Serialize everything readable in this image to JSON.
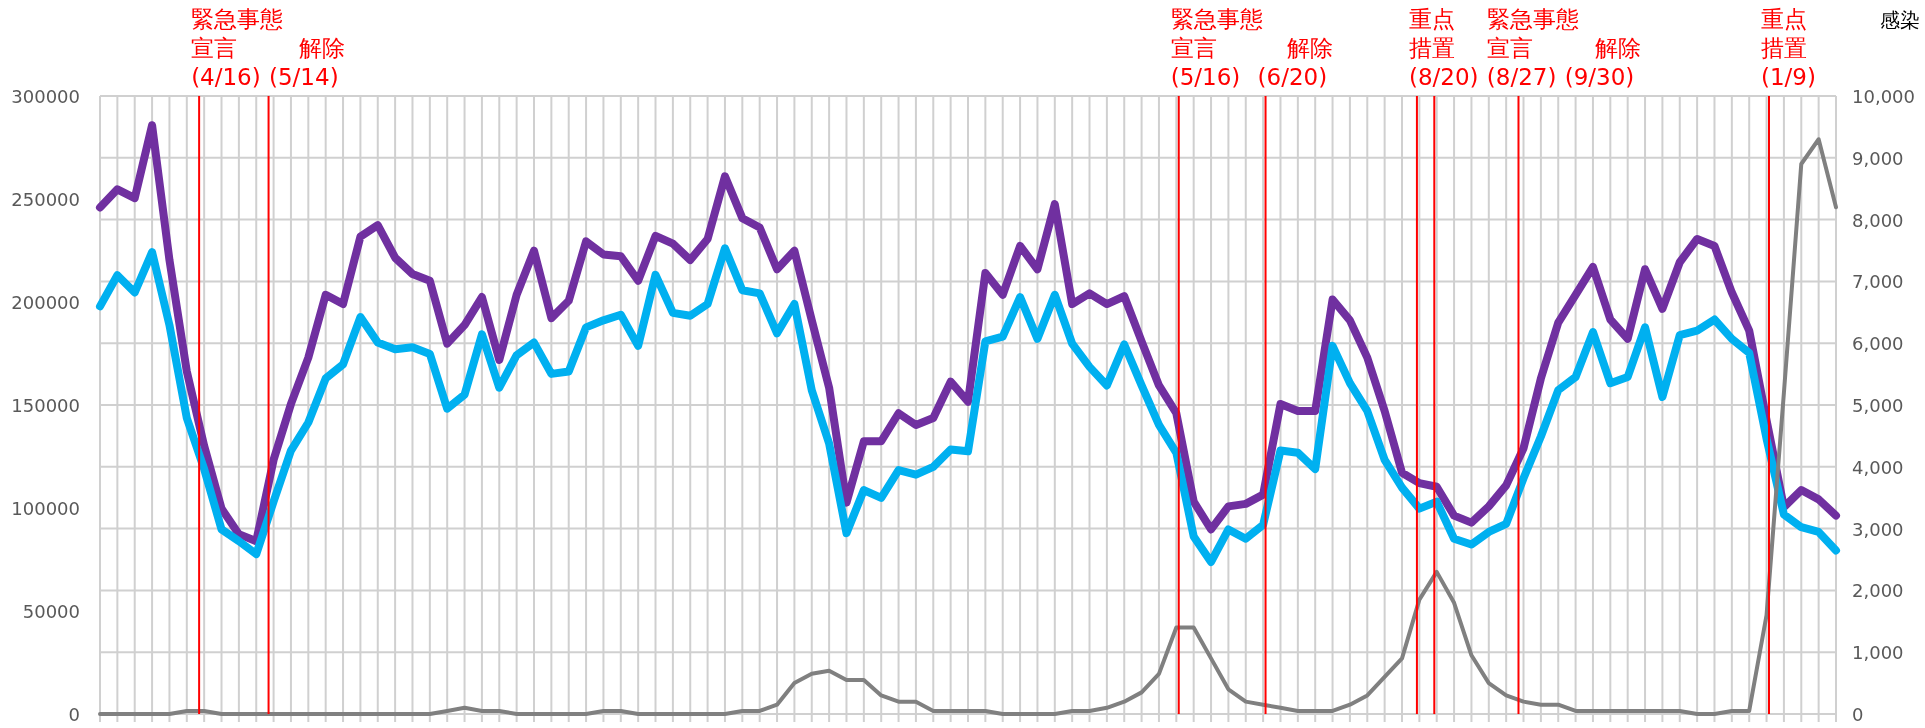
{
  "chart_data": {
    "type": "line",
    "y2label": "感染",
    "categories": [
      null,
      null,
      null,
      null,
      null,
      null,
      null,
      null,
      null,
      null,
      null,
      null,
      null,
      null,
      null,
      null,
      null,
      null,
      null,
      null,
      null,
      null,
      null,
      null,
      null,
      null,
      null,
      null,
      null,
      null,
      null,
      null,
      null,
      null,
      null,
      null,
      null,
      null,
      null,
      null,
      null,
      null,
      null,
      null,
      null,
      null,
      null,
      null,
      null,
      null,
      null,
      null,
      null,
      null,
      null,
      null,
      null,
      null,
      null,
      null,
      null,
      null,
      null,
      null,
      null,
      null,
      null,
      null,
      null,
      null,
      null,
      null,
      null,
      null,
      null,
      null,
      null,
      null,
      null,
      null,
      null,
      null,
      null,
      null,
      null,
      null,
      null,
      null,
      null,
      null,
      null,
      null,
      null,
      null,
      null,
      null,
      null,
      null,
      null,
      null,
      null
    ],
    "ylim": [
      0,
      300000
    ],
    "yticks": [
      0,
      50000,
      100000,
      150000,
      200000,
      250000,
      300000
    ],
    "y2lim": [
      0,
      10000
    ],
    "y2ticks": [
      0,
      {
        "value": 1000,
        "label": "1,000"
      },
      {
        "value": 2000,
        "label": "2,000"
      },
      {
        "value": 3000,
        "label": "3,000"
      },
      {
        "value": 4000,
        "label": "4,000"
      },
      {
        "value": 5000,
        "label": "5,000"
      },
      {
        "value": 6000,
        "label": "6,000"
      },
      {
        "value": 7000,
        "label": "7,000"
      },
      {
        "value": 8000,
        "label": "8,000"
      },
      {
        "value": 9000,
        "label": "9,000"
      },
      {
        "value": 10000,
        "label": "10,000"
      }
    ],
    "grid": true,
    "tick_labels": "y",
    "series": [
      {
        "color": "#7030a0",
        "values": [
          245900,
          254700,
          250400,
          285800,
          220400,
          166300,
          130200,
          99700,
          87300,
          83900,
          123400,
          150500,
          173000,
          203500,
          199000,
          231700,
          237300,
          221500,
          213600,
          210300,
          179800,
          188800,
          202400,
          171900,
          203500,
          224900,
          192200,
          200600,
          229400,
          223100,
          222200,
          210300,
          232100,
          228300,
          220400,
          230600,
          261000,
          240700,
          236200,
          215900,
          224900,
          191100,
          158400,
          102600,
          132400,
          132400,
          146000,
          140300,
          143700,
          161300,
          151600,
          214100,
          203500,
          227200,
          215900,
          247500,
          199000,
          204200,
          199000,
          202800,
          180900,
          159500,
          146000,
          103100,
          89600,
          100800,
          102000,
          106500,
          150500,
          147100,
          147100,
          201200,
          191100,
          173000,
          147100,
          117100,
          112100,
          110300,
          96300,
          92900,
          100800,
          111000,
          129000,
          162900,
          190000,
          203500,
          217000,
          191500,
          182100,
          215900,
          196700,
          219300,
          230600,
          227200,
          204600,
          186100,
          142600,
          100400,
          108700,
          104200,
          96300
        ]
      },
      {
        "color": "#00b0f0",
        "values": [
          197900,
          213000,
          204600,
          224200,
          188800,
          143700,
          118900,
          89600,
          83900,
          77600,
          103100,
          127900,
          141500,
          162900,
          169700,
          192700,
          180300,
          177100,
          178000,
          174800,
          148200,
          155000,
          184300,
          158400,
          174200,
          180300,
          165100,
          166300,
          187700,
          191100,
          193800,
          178700,
          213200,
          194700,
          193300,
          199000,
          226100,
          205700,
          204200,
          184800,
          199000,
          157200,
          131300,
          87800,
          108700,
          104900,
          118400,
          116200,
          120000,
          128400,
          127500,
          180900,
          183200,
          202400,
          182100,
          203500,
          179800,
          168500,
          159500,
          179400,
          159500,
          140300,
          126800,
          86200,
          73800,
          89600,
          85100,
          91800,
          127900,
          126800,
          118900,
          178700,
          160600,
          147100,
          123400,
          109900,
          99700,
          103100,
          85100,
          82300,
          88400,
          92300,
          114400,
          134700,
          157200,
          163600,
          185400,
          160600,
          163600,
          187700,
          153900,
          183900,
          186100,
          191500,
          182100,
          175300,
          133600,
          96800,
          90700,
          88400,
          79400
        ]
      },
      {
        "color": "#808080",
        "axis": "y2",
        "values": [
          0,
          0,
          0,
          0,
          0,
          50,
          50,
          0,
          0,
          0,
          0,
          0,
          0,
          0,
          0,
          0,
          0,
          0,
          0,
          0,
          50,
          100,
          50,
          50,
          0,
          0,
          0,
          0,
          0,
          50,
          50,
          0,
          0,
          0,
          0,
          0,
          0,
          50,
          50,
          150,
          500,
          650,
          700,
          550,
          550,
          300,
          200,
          200,
          50,
          50,
          50,
          50,
          0,
          0,
          0,
          0,
          50,
          50,
          100,
          200,
          350,
          650,
          1400,
          1400,
          900,
          400,
          200,
          150,
          100,
          50,
          50,
          50,
          150,
          300,
          600,
          900,
          1850,
          2300,
          1800,
          950,
          500,
          300,
          200,
          150,
          150,
          50,
          50,
          50,
          50,
          50,
          50,
          50,
          0,
          0,
          50,
          50,
          1600,
          5200,
          8900,
          9300,
          8200
        ]
      }
    ],
    "annotations": [
      "緊急事態宣言(4/16)",
      "解除(5/14)",
      "緊急事態宣言(5/16)",
      "解除(6/20)",
      "重点措置(8/20)",
      "緊急事態宣言(8/27)",
      "解除(9/30)",
      "重点措置(1/9)"
    ]
  }
}
